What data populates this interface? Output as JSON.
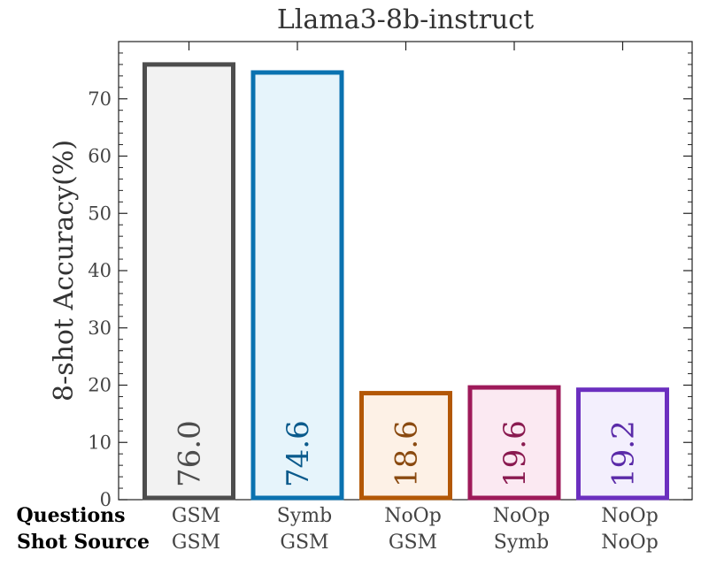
{
  "chart_data": {
    "type": "bar",
    "title": "Llama3-8b-instruct",
    "ylabel": "8-shot Accuracy(%)",
    "xlabel": "",
    "ylim": [
      0,
      80
    ],
    "yticks": [
      0,
      10,
      20,
      30,
      40,
      50,
      60,
      70
    ],
    "grid": false,
    "row_labels": [
      "Questions",
      "Shot Source"
    ],
    "categories": [
      {
        "questions": "GSM",
        "shot_source": "GSM"
      },
      {
        "questions": "Symb",
        "shot_source": "GSM"
      },
      {
        "questions": "NoOp",
        "shot_source": "GSM"
      },
      {
        "questions": "NoOp",
        "shot_source": "Symb"
      },
      {
        "questions": "NoOp",
        "shot_source": "NoOp"
      }
    ],
    "values": [
      76.0,
      74.6,
      18.6,
      19.6,
      19.2
    ],
    "value_labels": [
      "76.0",
      "74.6",
      "18.6",
      "19.6",
      "19.2"
    ],
    "edge_colors": [
      "#4d4d4d",
      "#0a72b0",
      "#b35806",
      "#9e1a5a",
      "#6b2fbf"
    ],
    "fill_colors": [
      "#f2f2f2",
      "#e6f4fb",
      "#fdf1e6",
      "#fbe9f2",
      "#f3effd"
    ],
    "label_colors": [
      "#4d4d4d",
      "#0a5a8c",
      "#8a4a10",
      "#8a1a50",
      "#5a2aa8"
    ]
  }
}
